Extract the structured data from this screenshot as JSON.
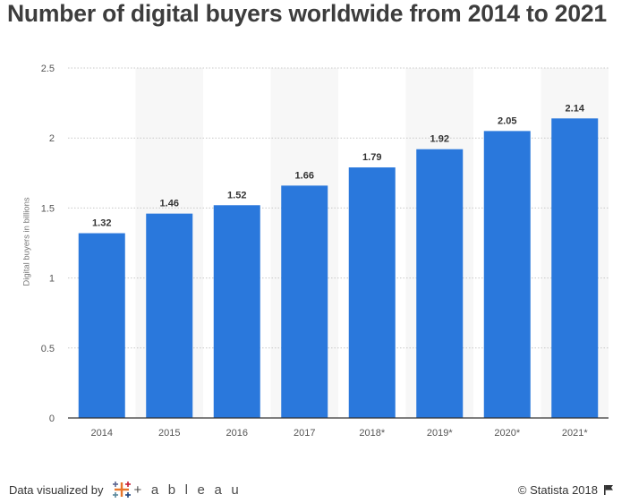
{
  "chart_data": {
    "type": "bar",
    "title": "Number of digital buyers worldwide from 2014 to 2021",
    "ylabel": "Digital buyers in billions",
    "xlabel": "",
    "categories": [
      "2014",
      "2015",
      "2016",
      "2017",
      "2018*",
      "2019*",
      "2020*",
      "2021*"
    ],
    "values": [
      1.32,
      1.46,
      1.52,
      1.66,
      1.79,
      1.92,
      2.05,
      2.14
    ],
    "value_labels": [
      "1.32",
      "1.46",
      "1.52",
      "1.66",
      "1.79",
      "1.92",
      "2.05",
      "2.14"
    ],
    "ylim": [
      0,
      2.5
    ],
    "yticks": [
      0,
      0.5,
      1,
      1.5,
      2,
      2.5
    ],
    "ytick_labels": [
      "0",
      "0.5",
      "1",
      "1.5",
      "2",
      "2.5"
    ],
    "grid": true,
    "bar_color": "#2a78dc"
  },
  "footer": {
    "visualized_by": "Data visualized by",
    "tableau_word": "+ a b l e a u",
    "tableau_icon": "tableau-logo-icon",
    "copyright": "© Statista 2018",
    "flag_icon": "flag-icon"
  }
}
